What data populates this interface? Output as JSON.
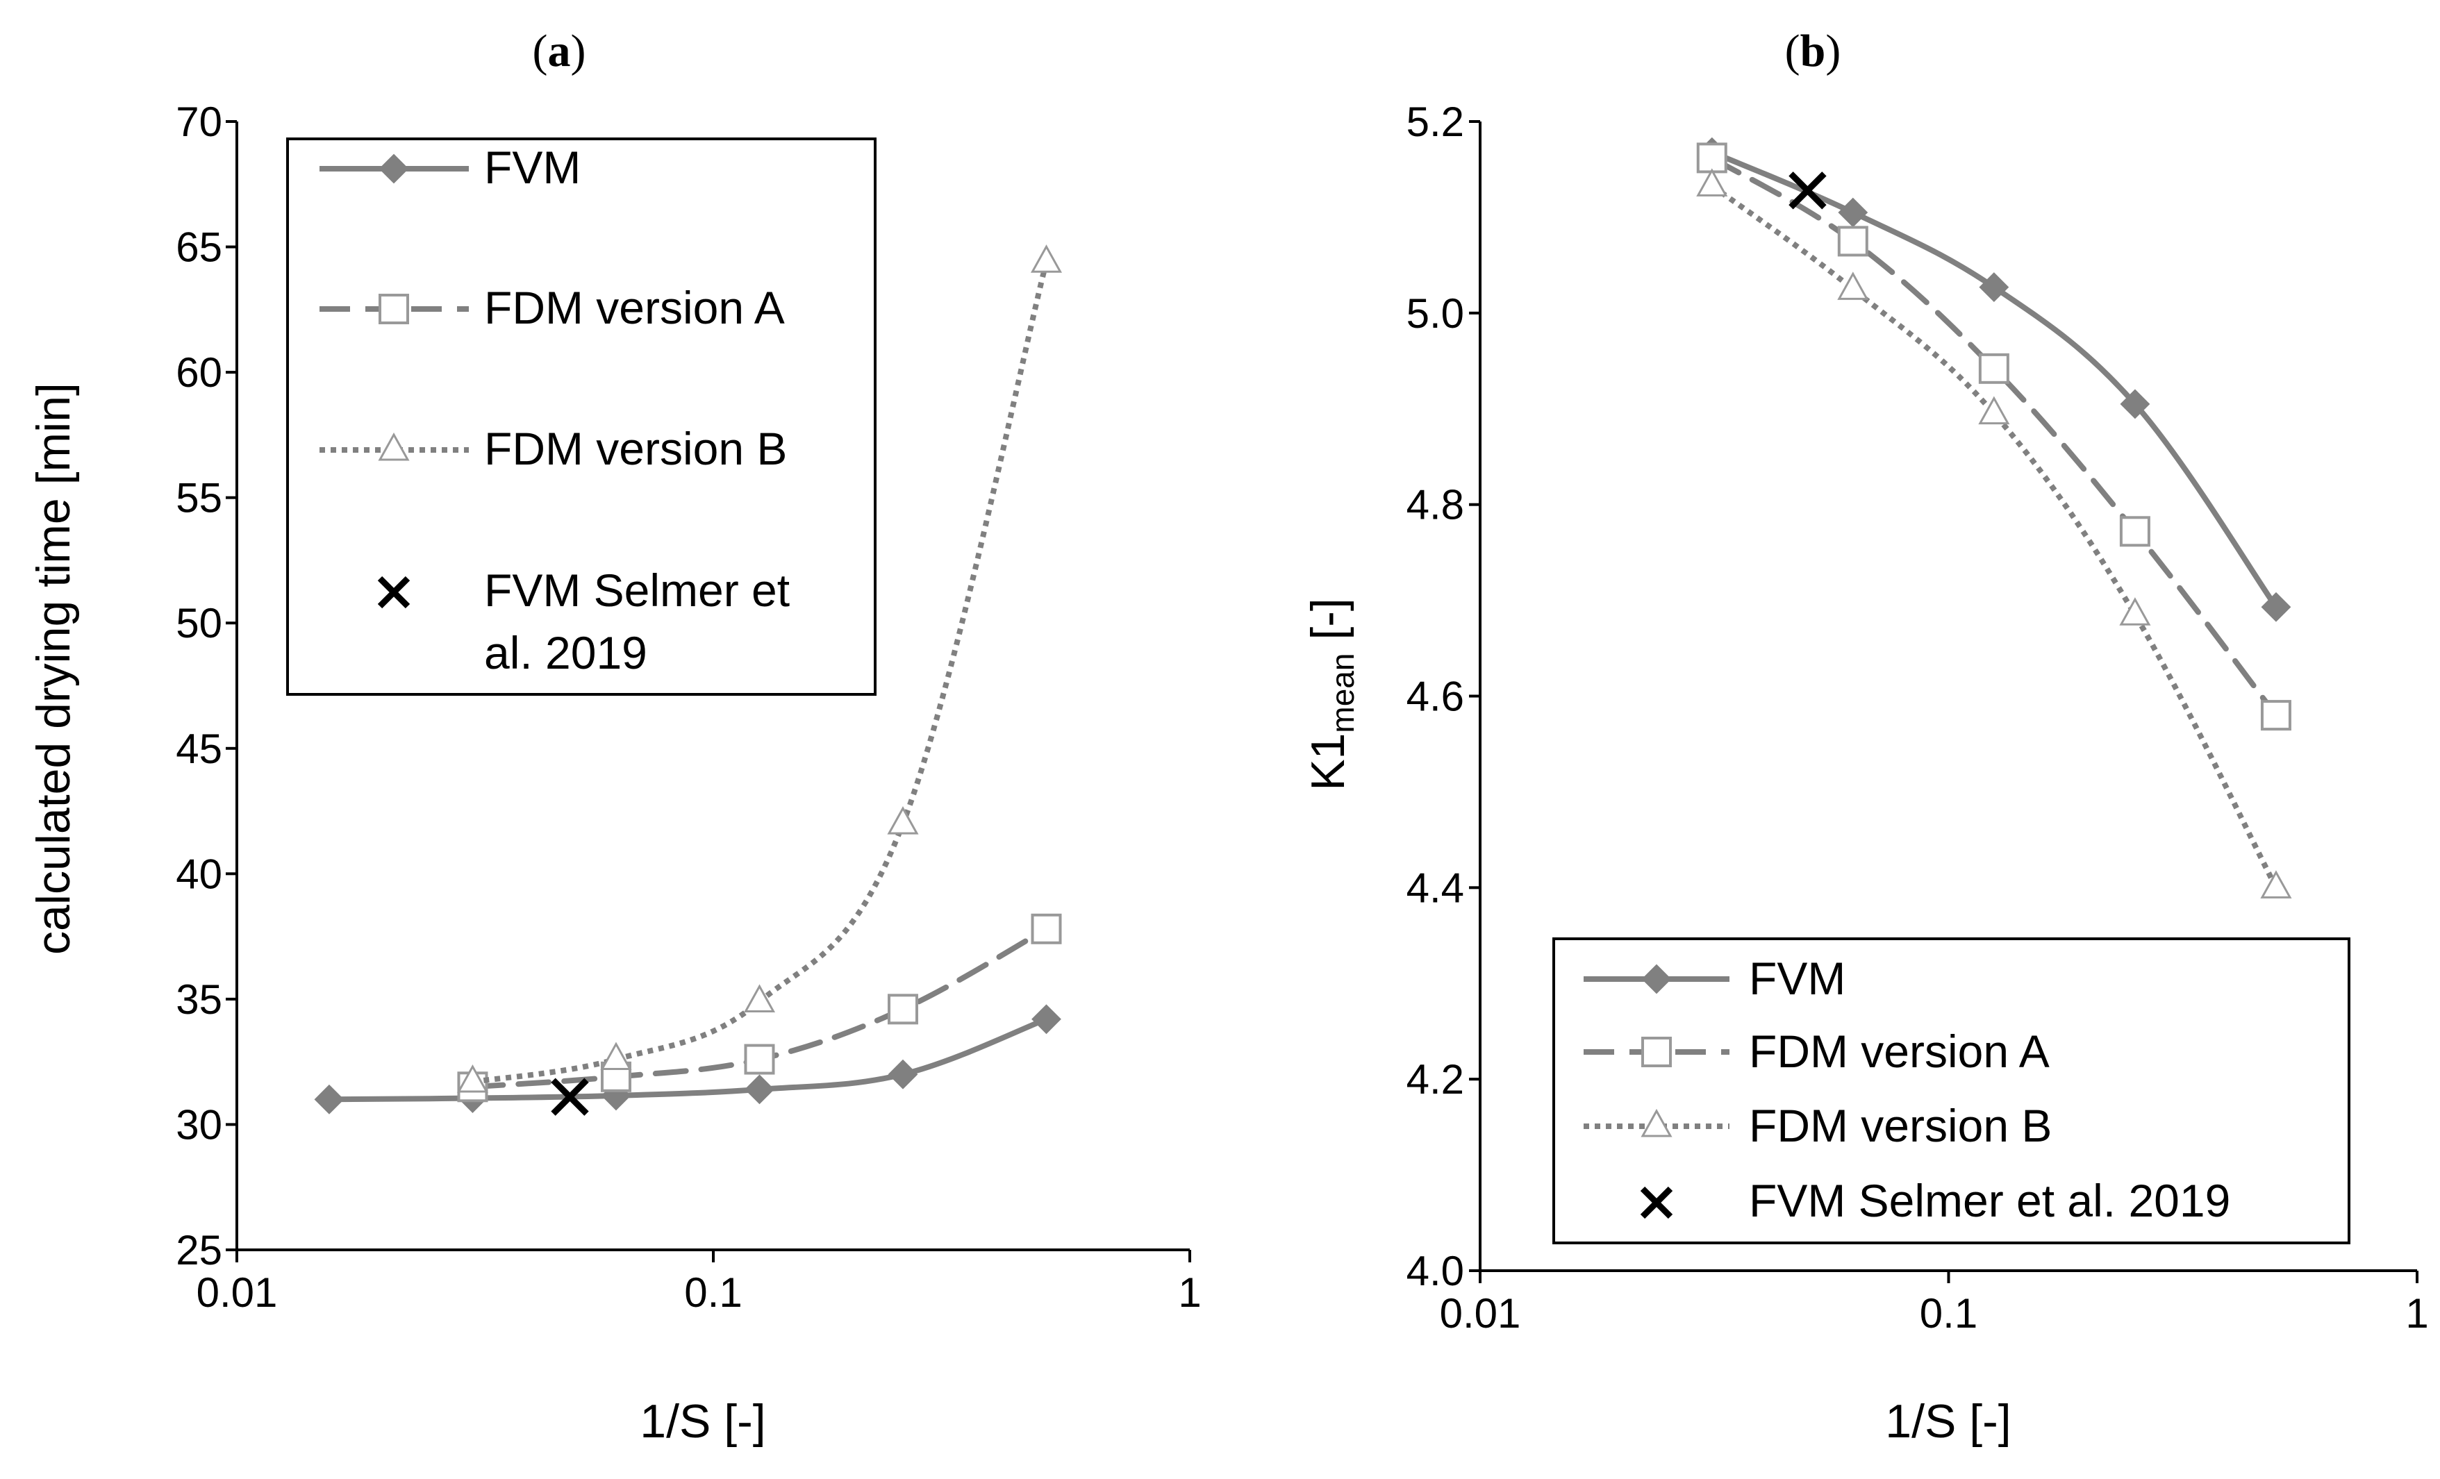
{
  "chart_data": [
    {
      "panel": "a",
      "type": "line",
      "title_open": "(",
      "title_letter": "a",
      "title_close": ")",
      "xscale": "log",
      "xlim": [
        0.01,
        1
      ],
      "ylim": [
        25,
        70
      ],
      "xticks": [
        0.01,
        0.1,
        1
      ],
      "xtick_labels": [
        "0.01",
        "0.1",
        "1"
      ],
      "yticks": [
        25,
        30,
        35,
        40,
        45,
        50,
        55,
        60,
        65,
        70
      ],
      "ytick_labels": [
        "25",
        "30",
        "35",
        "40",
        "45",
        "50",
        "55",
        "60",
        "65",
        "70"
      ],
      "xlabel": "1/S [-]",
      "ylabel": "calculated drying time [min]",
      "legend_position": "top-left",
      "series": [
        {
          "name": "FVM",
          "x": [
            0.015625,
            0.03125,
            0.0625,
            0.125,
            0.25,
            0.5
          ],
          "y": [
            31.0,
            31.05,
            31.15,
            31.4,
            32.0,
            34.2
          ]
        },
        {
          "name": "FDM version A",
          "x": [
            0.03125,
            0.0625,
            0.125,
            0.25,
            0.5
          ],
          "y": [
            31.5,
            31.9,
            32.6,
            34.6,
            37.8
          ]
        },
        {
          "name": "FDM version B",
          "x": [
            0.03125,
            0.0625,
            0.125,
            0.25,
            0.5
          ],
          "y": [
            31.7,
            32.6,
            34.9,
            42.0,
            64.4
          ]
        },
        {
          "name": "FVM Selmer et al. 2019",
          "name_lines": [
            "FVM Selmer et",
            "al. 2019"
          ],
          "x": [
            0.05
          ],
          "y": [
            31.1
          ]
        }
      ]
    },
    {
      "panel": "b",
      "type": "line",
      "title_open": "(",
      "title_letter": "b",
      "title_close": ")",
      "xscale": "log",
      "xlim": [
        0.01,
        1
      ],
      "ylim": [
        4.0,
        5.2
      ],
      "xticks": [
        0.01,
        0.1,
        1
      ],
      "xtick_labels": [
        "0.01",
        "0.1",
        "1"
      ],
      "yticks": [
        4.0,
        4.2,
        4.4,
        4.6,
        4.8,
        5.0,
        5.2
      ],
      "ytick_labels": [
        "4.0",
        "4.2",
        "4.4",
        "4.6",
        "4.8",
        "5.0",
        "5.2"
      ],
      "xlabel": "1/S [-]",
      "ylabel_main": "K1",
      "ylabel_sub": "mean",
      "ylabel_unit": " [-]",
      "legend_position": "bottom-right",
      "series": [
        {
          "name": "FVM",
          "x": [
            0.03125,
            0.0625,
            0.125,
            0.25,
            0.5
          ],
          "y": [
            5.168,
            5.105,
            5.027,
            4.905,
            4.693
          ]
        },
        {
          "name": "FDM version A",
          "x": [
            0.03125,
            0.0625,
            0.125,
            0.25,
            0.5
          ],
          "y": [
            5.162,
            5.075,
            4.942,
            4.772,
            4.58
          ]
        },
        {
          "name": "FDM version B",
          "x": [
            0.03125,
            0.0625,
            0.125,
            0.25,
            0.5
          ],
          "y": [
            5.133,
            5.025,
            4.895,
            4.685,
            4.4
          ]
        },
        {
          "name": "FVM Selmer et al. 2019",
          "x": [
            0.05
          ],
          "y": [
            5.128
          ]
        }
      ]
    }
  ],
  "colors": {
    "series_gray": "#808080",
    "marker_fill": "#808080",
    "open_marker_stroke": "#999999",
    "selmer": "#000000",
    "axis": "#000000",
    "frame": "#000000"
  }
}
